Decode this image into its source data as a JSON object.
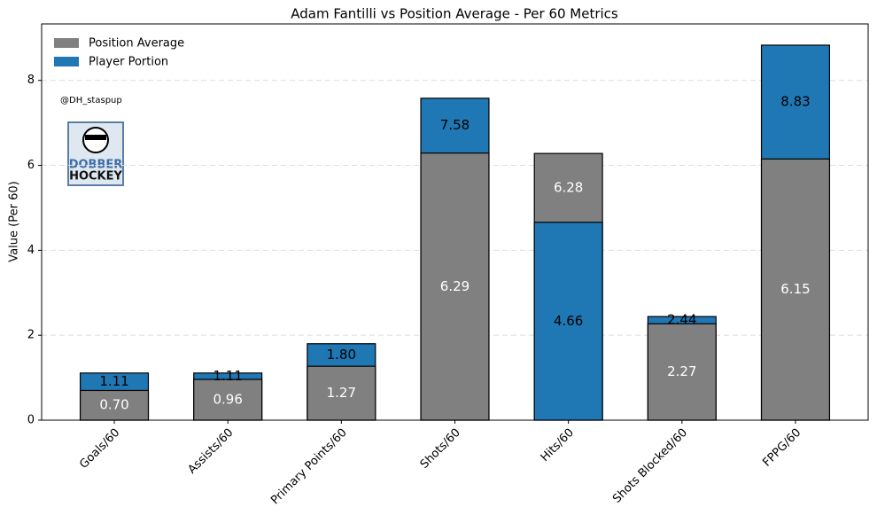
{
  "chart_data": {
    "type": "overlap-bar",
    "title": "Adam Fantilli vs Position Average - Per 60 Metrics",
    "y_label": "Value (Per 60)",
    "watermark": "@DH_staspup",
    "logo_text": [
      "DOBBER",
      "HOCKEY"
    ],
    "categories": [
      "Goals/60",
      "Assists/60",
      "Primary Points/60",
      "Shots/60",
      "Hits/60",
      "Shots Blocked/60",
      "FPPG/60"
    ],
    "series": [
      {
        "name": "Position Average",
        "color": "#808080",
        "label_color": "#ffffff",
        "values": [
          0.7,
          0.96,
          1.27,
          6.29,
          6.28,
          2.27,
          6.15
        ],
        "value_labels": [
          "0.70",
          "0.96",
          "1.27",
          "6.29",
          "6.28",
          "2.27",
          "6.15"
        ]
      },
      {
        "name": "Player Portion",
        "color": "#1f77b4",
        "label_color": "#000000",
        "values": [
          1.11,
          1.11,
          1.8,
          7.58,
          4.66,
          2.44,
          8.83
        ],
        "value_labels": [
          "1.11",
          "1.11",
          "1.80",
          "7.58",
          "4.66",
          "2.44",
          "8.83"
        ]
      }
    ],
    "ylim": [
      0,
      9.33
    ],
    "yticks": [
      0,
      2,
      4,
      6,
      8
    ],
    "grid": true,
    "legend": "upper left"
  }
}
